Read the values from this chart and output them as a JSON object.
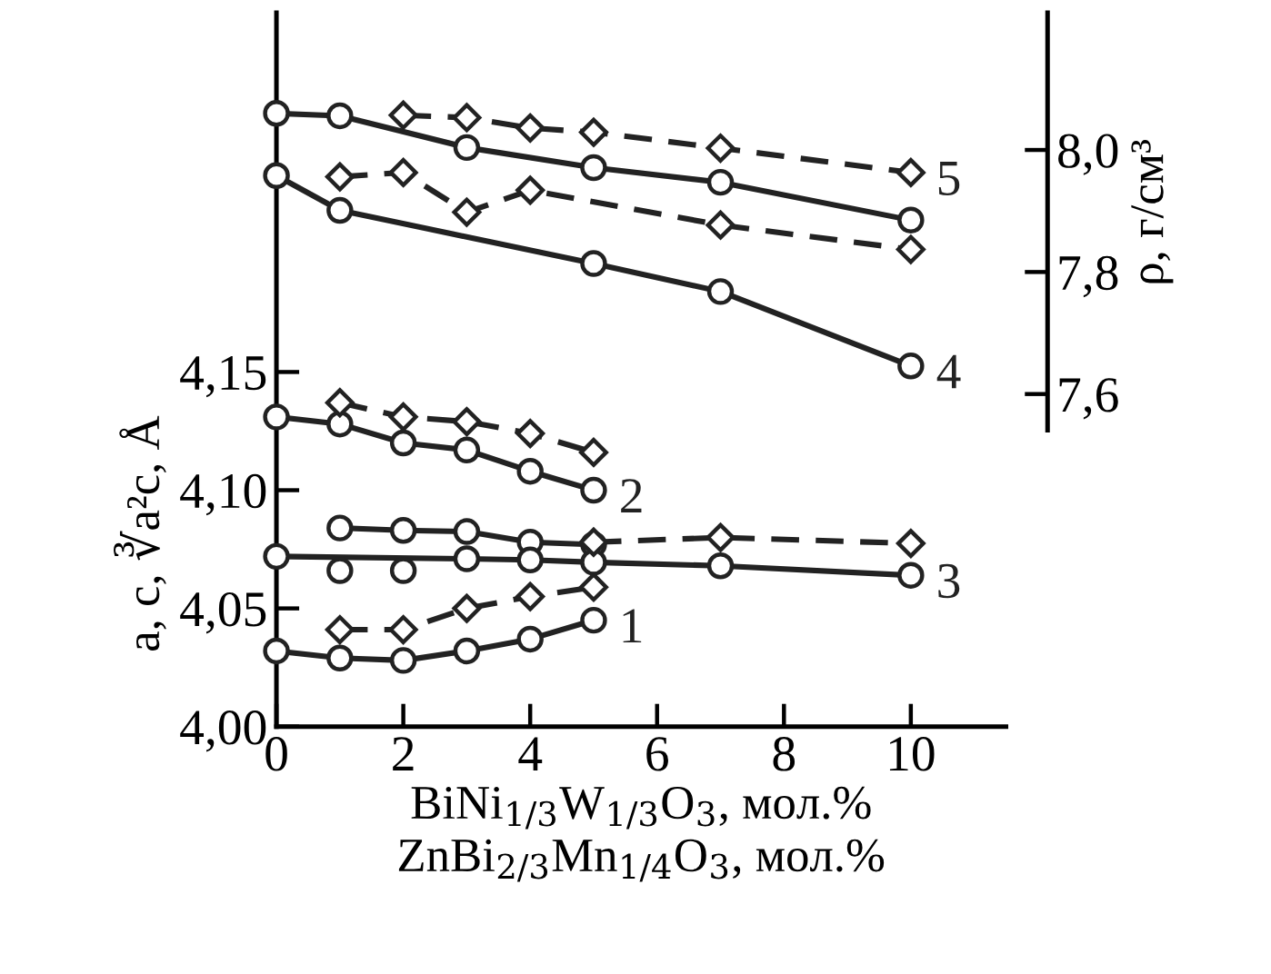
{
  "chart_data": {
    "type": "line",
    "xlabel": "BiNi$_{1/3}$W$_{1/3}$O$_{3}$, мол.%\nZnBi$_{2/3}$Mn$_{1/4}$O$_{3}$, мол.%",
    "ylabel": "a, c, ∛a²c, Å",
    "y2label": "ρ, г/см³",
    "xlim": [
      0,
      11.5
    ],
    "ylim": [
      4.0,
      4.302
    ],
    "y2lim": [
      7.055,
      8.225
    ],
    "xticks": [
      0,
      2,
      4,
      6,
      8,
      10
    ],
    "yticks": [
      {
        "value": 4.0,
        "label": "4,00"
      },
      {
        "value": 4.05,
        "label": "4,05"
      },
      {
        "value": 4.1,
        "label": "4,10"
      },
      {
        "value": 4.15,
        "label": "4,15"
      }
    ],
    "y2ticks": [
      {
        "value": 7.6,
        "label": "7,6"
      },
      {
        "value": 7.8,
        "label": "7,8"
      },
      {
        "value": 8.0,
        "label": "8,0"
      }
    ],
    "grid": false,
    "series": [
      {
        "axis": "y2",
        "color": "#222222",
        "marker": "circle",
        "line_style": "solid",
        "x": [
          0,
          1,
          3,
          5,
          7,
          10
        ],
        "values": [
          8.06,
          8.056,
          8.004,
          7.971,
          7.947,
          7.885
        ]
      },
      {
        "axis": "y2",
        "name": "5",
        "color": "#222222",
        "marker": "diamond",
        "line_style": "dashed",
        "x": [
          2,
          3,
          4,
          5,
          7,
          10
        ],
        "values": [
          8.057,
          8.053,
          8.036,
          8.029,
          8.003,
          7.963
        ]
      },
      {
        "axis": "y2",
        "name": "4",
        "color": "#222222",
        "marker": "circle",
        "line_style": "solid",
        "x": [
          0,
          1,
          5,
          7,
          10
        ],
        "values": [
          7.958,
          7.901,
          7.814,
          7.768,
          7.646
        ]
      },
      {
        "axis": "y2",
        "color": "#222222",
        "marker": "diamond",
        "line_style": "dashed",
        "x": [
          1,
          2,
          3,
          4,
          7,
          10
        ],
        "values": [
          7.956,
          7.963,
          7.898,
          7.934,
          7.877,
          7.837
        ]
      },
      {
        "name": "2",
        "color": "#222222",
        "marker": "circle",
        "line_style": "solid",
        "x": [
          0,
          1,
          2,
          3,
          4,
          5
        ],
        "values": [
          4.131,
          4.128,
          4.12,
          4.117,
          4.108,
          4.1
        ]
      },
      {
        "color": "#222222",
        "marker": "diamond",
        "line_style": "dashed",
        "x": [
          1,
          2,
          3,
          4,
          5
        ],
        "values": [
          4.137,
          4.131,
          4.129,
          4.124,
          4.116
        ]
      },
      {
        "color": "#222222",
        "marker": "circle",
        "line_style": "solid",
        "x": [
          1,
          2,
          3,
          4,
          5
        ],
        "values": [
          4.084,
          4.083,
          4.0825,
          4.078,
          4.077
        ]
      },
      {
        "name": "3",
        "color": "#222222",
        "marker": "circle",
        "line_style": "solid",
        "x": [
          0,
          3,
          4,
          5,
          7,
          10
        ],
        "values": [
          4.072,
          4.071,
          4.0705,
          4.0695,
          4.068,
          4.064
        ]
      },
      {
        "type": "scatter",
        "color": "#222222",
        "marker": "circle",
        "x": [
          1,
          2
        ],
        "values": [
          4.066,
          4.066
        ]
      },
      {
        "color": "#222222",
        "marker": "diamond",
        "line_style": "dashed",
        "x": [
          5,
          7,
          10
        ],
        "values": [
          4.078,
          4.08,
          4.0775
        ]
      },
      {
        "name": "1",
        "color": "#222222",
        "marker": "circle",
        "line_style": "solid",
        "x": [
          0,
          1,
          2,
          3,
          4,
          5
        ],
        "values": [
          4.032,
          4.029,
          4.028,
          4.032,
          4.037,
          4.045
        ]
      },
      {
        "color": "#222222",
        "marker": "diamond",
        "line_style": "dashed",
        "x": [
          1,
          2,
          3,
          4,
          5
        ],
        "values": [
          4.041,
          4.041,
          4.05,
          4.055,
          4.059
        ]
      }
    ]
  }
}
